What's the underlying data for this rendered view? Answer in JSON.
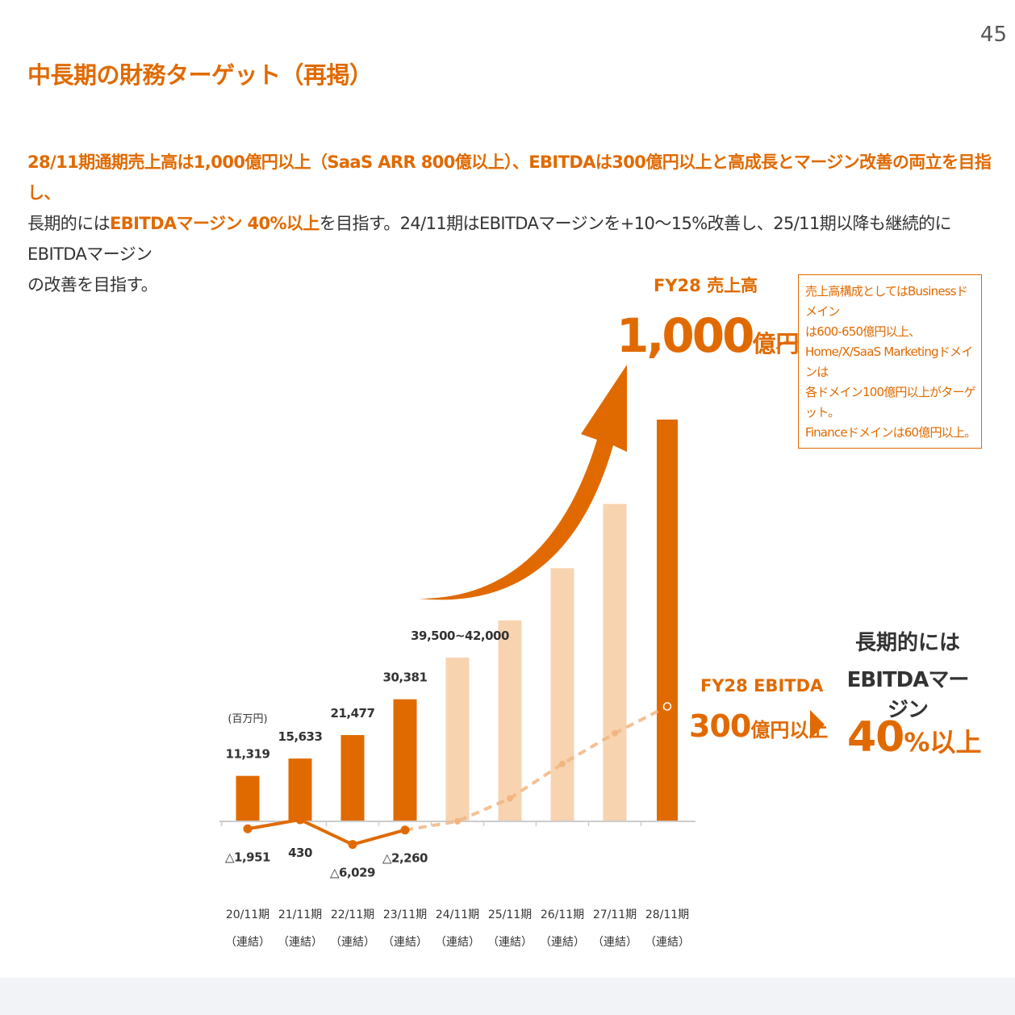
{
  "page_number": "45",
  "title": "中長期の財務ターゲット（再掲）",
  "description": {
    "line1": "28/11期通期売上高は1,000億円以上（SaaS ARR 800億以上）、EBITDAは300億円以上と高成長とマージン改善の両立を目指し、",
    "line2_prefix": "長期的には",
    "line2_highlight": "EBITDAマージン 40%以上",
    "line2_suffix": "を目指す。24/11期はEBITDAマージンを+10～15%改善し、25/11期以降も継続的にEBITDAマージン",
    "line3": "の改善を目指す。"
  },
  "fy28_sales": {
    "label": "FY28 売上高",
    "value": "1,000",
    "unit": "億円以上"
  },
  "note": {
    "lines": [
      "売上高構成としてはBusinessドメイン",
      "は600-650億円以上、",
      "Home/X/SaaS Marketingドメインは",
      "各ドメイン100億円以上がターゲット。",
      "Financeドメインは60億円以上。"
    ]
  },
  "fy28_ebitda": {
    "label": "FY28 EBITDA",
    "value": "300",
    "unit": "億円以上"
  },
  "long_term": {
    "line1": "長期的には",
    "line2": "EBITDAマージン",
    "value": "40",
    "unit": "%以上"
  },
  "colors": {
    "accent": "#e06a00",
    "light_bar": "#f7d3b0",
    "text": "#333333"
  },
  "chart_data": {
    "type": "bar",
    "unit_label": "(百万円)",
    "categories": [
      "20/11期",
      "21/11期",
      "22/11期",
      "23/11期",
      "24/11期",
      "25/11期",
      "26/11期",
      "27/11期",
      "28/11期"
    ],
    "category_sublabel": "（連結）",
    "revenue": [
      11319,
      15633,
      21477,
      30381,
      40750,
      50000,
      63000,
      79000,
      100000
    ],
    "revenue_labels": [
      "11,319",
      "15,633",
      "21,477",
      "30,381",
      "39,500~42,000",
      "",
      "",
      "",
      ""
    ],
    "revenue_kind": [
      "actual",
      "actual",
      "actual",
      "actual",
      "forecast",
      "forecast",
      "forecast",
      "forecast",
      "target"
    ],
    "ebitda": [
      -1951,
      430,
      -6029,
      -2260,
      0,
      6000,
      15000,
      23000,
      30000
    ],
    "ebitda_labels": [
      "△1,951",
      "430",
      "△6,029",
      "△2,260",
      "",
      "",
      "",
      "",
      ""
    ],
    "ebitda_kind": [
      "actual",
      "actual",
      "actual",
      "actual",
      "forecast",
      "forecast",
      "forecast",
      "forecast",
      "target"
    ]
  }
}
